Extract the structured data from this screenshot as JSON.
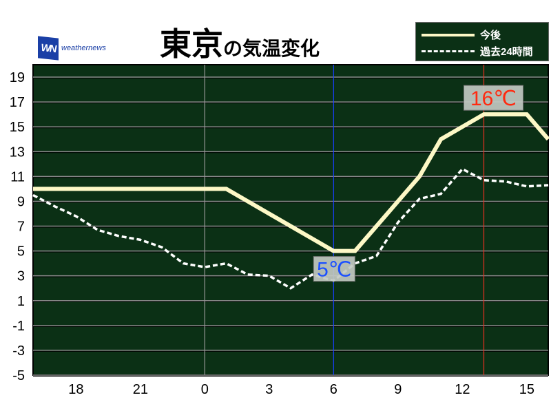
{
  "logo": {
    "mark": "WN",
    "text": "weathernews"
  },
  "title": {
    "main": "東京",
    "sub": "の気温変化"
  },
  "legend": {
    "forecast": "今後",
    "past": "過去24時間"
  },
  "colors": {
    "background": "#0b3015",
    "forecast": "#fdf8c6",
    "past": "#ffffff",
    "now_line": "#1a3fff",
    "peak_line": "#e83020",
    "min_label": "#1a4fff",
    "max_label": "#ff2a10"
  },
  "chart_data": {
    "type": "line",
    "title": "東京の気温変化",
    "xlabel": "",
    "ylabel": "",
    "ylim": [
      -5,
      20
    ],
    "yticks": [
      "19",
      "17",
      "15",
      "13",
      "11",
      "9",
      "7",
      "5",
      "3",
      "1",
      "-1",
      "-3",
      "-5"
    ],
    "x_hours": [
      16,
      17,
      18,
      19,
      20,
      21,
      22,
      23,
      0,
      1,
      2,
      3,
      4,
      5,
      6,
      7,
      8,
      9,
      10,
      11,
      12,
      13,
      14,
      15,
      16
    ],
    "xticks": [
      "18",
      "21",
      "0",
      "3",
      "6",
      "9",
      "12",
      "15"
    ],
    "grid": true,
    "legend_position": "top-right",
    "series": [
      {
        "name": "今後",
        "style": "solid",
        "values": [
          10,
          10,
          10,
          10,
          10,
          10,
          10,
          10,
          10,
          10,
          9,
          8,
          7,
          6,
          5,
          5,
          7,
          9,
          11,
          14,
          15,
          16,
          16,
          16,
          14
        ]
      },
      {
        "name": "過去24時間",
        "style": "dashed",
        "values": [
          9.5,
          8.6,
          7.8,
          6.7,
          6.2,
          5.9,
          5.3,
          4.0,
          3.7,
          4.0,
          3.1,
          3.0,
          2.0,
          3.1,
          2.6,
          4.0,
          4.6,
          7.3,
          9.2,
          9.6,
          11.6,
          10.7,
          10.6,
          10.2,
          10.3
        ]
      }
    ],
    "annotations": [
      {
        "text": "5℃",
        "hour": 6,
        "value": 5,
        "kind": "min"
      },
      {
        "text": "16℃",
        "hour": 13,
        "value": 16,
        "kind": "max"
      }
    ],
    "vertical_lines": [
      {
        "hour": 0,
        "kind": "day"
      },
      {
        "hour": 6,
        "kind": "min"
      },
      {
        "hour": 13,
        "kind": "max"
      }
    ]
  }
}
